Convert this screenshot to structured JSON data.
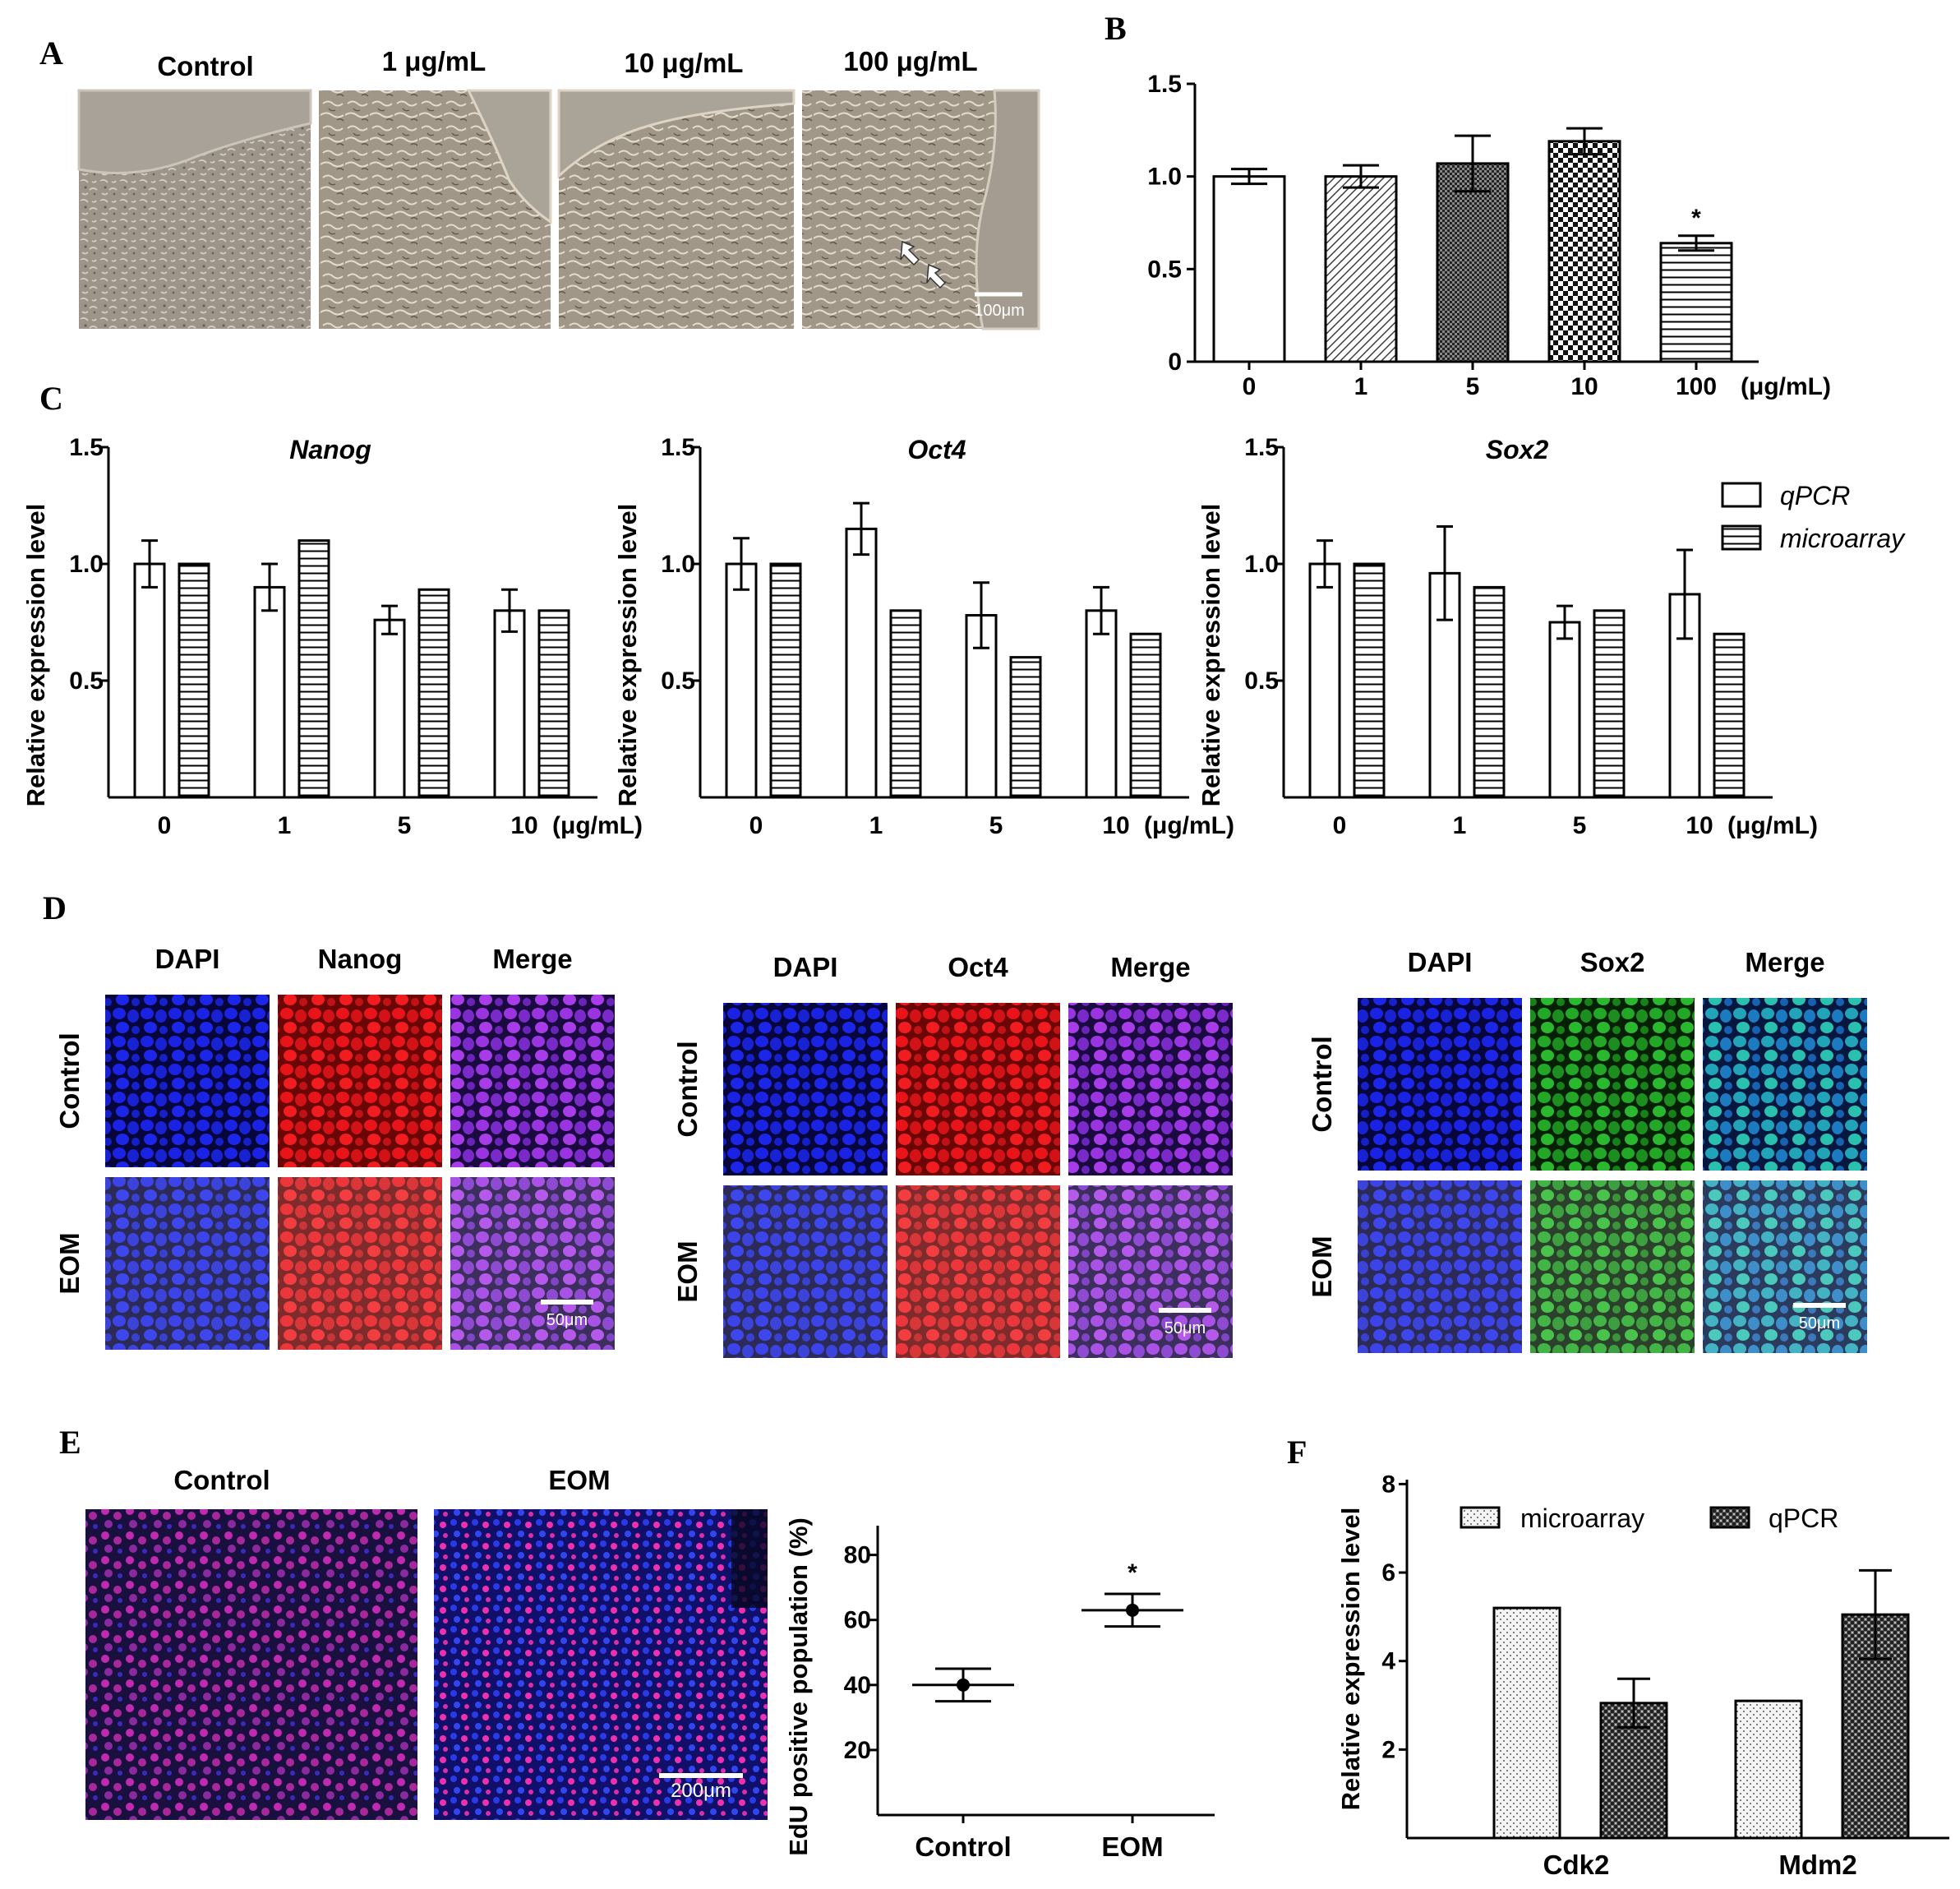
{
  "panel_labels": {
    "A": "A",
    "B": "B",
    "C": "C",
    "D": "D",
    "E": "E",
    "F": "F"
  },
  "panelA": {
    "headers": [
      "Control",
      "1 μg/mL",
      "10 μg/mL",
      "100 μg/mL"
    ],
    "scale_label": "100μm"
  },
  "panelD": {
    "groups": [
      {
        "headers": [
          "DAPI",
          "Nanog",
          "Merge"
        ],
        "rows": [
          "Control",
          "EOM"
        ],
        "scale_label": "50μm",
        "colors": [
          "#1a24e0",
          "#e0141c",
          "#8a2fd8"
        ]
      },
      {
        "headers": [
          "DAPI",
          "Oct4",
          "Merge"
        ],
        "rows": [
          "Control",
          "EOM"
        ],
        "scale_label": "50μm",
        "colors": [
          "#1a20d8",
          "#c81818",
          "#6a22b8"
        ]
      },
      {
        "headers": [
          "DAPI",
          "Sox2",
          "Merge"
        ],
        "rows": [
          "Control",
          "EOM"
        ],
        "scale_label": "50μm",
        "colors": [
          "#1a2ad8",
          "#1e9a20",
          "#1e8ab0"
        ]
      }
    ]
  },
  "panelE": {
    "image_headers": [
      "Control",
      "EOM"
    ],
    "scale_label": "200μm"
  },
  "chart_data": [
    {
      "id": "B",
      "type": "bar",
      "categories": [
        "0",
        "1",
        "5",
        "10",
        "100"
      ],
      "unit_label": "(μg/mL)",
      "values": [
        1.0,
        1.0,
        1.07,
        1.19,
        0.64
      ],
      "errors": [
        0.04,
        0.06,
        0.15,
        0.07,
        0.04
      ],
      "patterns": [
        "open",
        "diagonal",
        "dense-check",
        "check",
        "horizontal"
      ],
      "annotations": [
        {
          "category": "100",
          "text": "*"
        }
      ],
      "yticks": [
        "0",
        "0.5",
        "1.0",
        "1.5"
      ],
      "ylim": [
        0,
        1.5
      ]
    },
    {
      "id": "C1",
      "type": "bar",
      "title": "Nanog",
      "ylabel": "Relative expression level",
      "categories": [
        "0",
        "1",
        "5",
        "10"
      ],
      "unit_label": "(μg/mL)",
      "series": [
        {
          "name": "qPCR",
          "values": [
            1.0,
            0.9,
            0.76,
            0.8
          ],
          "errors": [
            0.1,
            0.1,
            0.06,
            0.09
          ]
        },
        {
          "name": "microarray",
          "values": [
            1.0,
            1.1,
            0.89,
            0.8
          ]
        }
      ],
      "yticks": [
        "0.5",
        "1.0",
        "1.5"
      ],
      "ylim": [
        0,
        1.5
      ]
    },
    {
      "id": "C2",
      "type": "bar",
      "title": "Oct4",
      "ylabel": "Relative expression level",
      "categories": [
        "0",
        "1",
        "5",
        "10"
      ],
      "unit_label": "(μg/mL)",
      "series": [
        {
          "name": "qPCR",
          "values": [
            1.0,
            1.15,
            0.78,
            0.8
          ],
          "errors": [
            0.11,
            0.11,
            0.14,
            0.1
          ]
        },
        {
          "name": "microarray",
          "values": [
            1.0,
            0.8,
            0.6,
            0.7
          ]
        }
      ],
      "yticks": [
        "0.5",
        "1.0",
        "1.5"
      ],
      "ylim": [
        0,
        1.5
      ]
    },
    {
      "id": "C3",
      "type": "bar",
      "title": "Sox2",
      "ylabel": "Relative expression level",
      "categories": [
        "0",
        "1",
        "5",
        "10"
      ],
      "unit_label": "(μg/mL)",
      "series": [
        {
          "name": "qPCR",
          "values": [
            1.0,
            0.96,
            0.75,
            0.87
          ],
          "errors": [
            0.1,
            0.2,
            0.07,
            0.19
          ]
        },
        {
          "name": "microarray",
          "values": [
            1.0,
            0.9,
            0.8,
            0.7
          ]
        }
      ],
      "legend": [
        "qPCR",
        "microarray"
      ],
      "yticks": [
        "0.5",
        "1.0",
        "1.5"
      ],
      "ylim": [
        0,
        1.5
      ]
    },
    {
      "id": "E",
      "type": "scatter",
      "ylabel": "EdU positive population (%)",
      "categories": [
        "Control",
        "EOM"
      ],
      "values": [
        40,
        63
      ],
      "errors": [
        5,
        5
      ],
      "annotations": [
        {
          "category": "EOM",
          "text": "*"
        }
      ],
      "yticks": [
        "20",
        "40",
        "60",
        "80"
      ],
      "ylim": [
        0,
        89
      ]
    },
    {
      "id": "F",
      "type": "bar",
      "ylabel": "Relative expression level",
      "categories": [
        "Cdk2",
        "Mdm2"
      ],
      "series": [
        {
          "name": "microarray",
          "values": [
            5.2,
            3.1
          ]
        },
        {
          "name": "qPCR",
          "values": [
            3.05,
            5.05
          ],
          "errors": [
            0.55,
            1.0
          ]
        }
      ],
      "yticks": [
        "2",
        "4",
        "6",
        "8"
      ],
      "ylim": [
        0,
        8.1
      ]
    }
  ]
}
